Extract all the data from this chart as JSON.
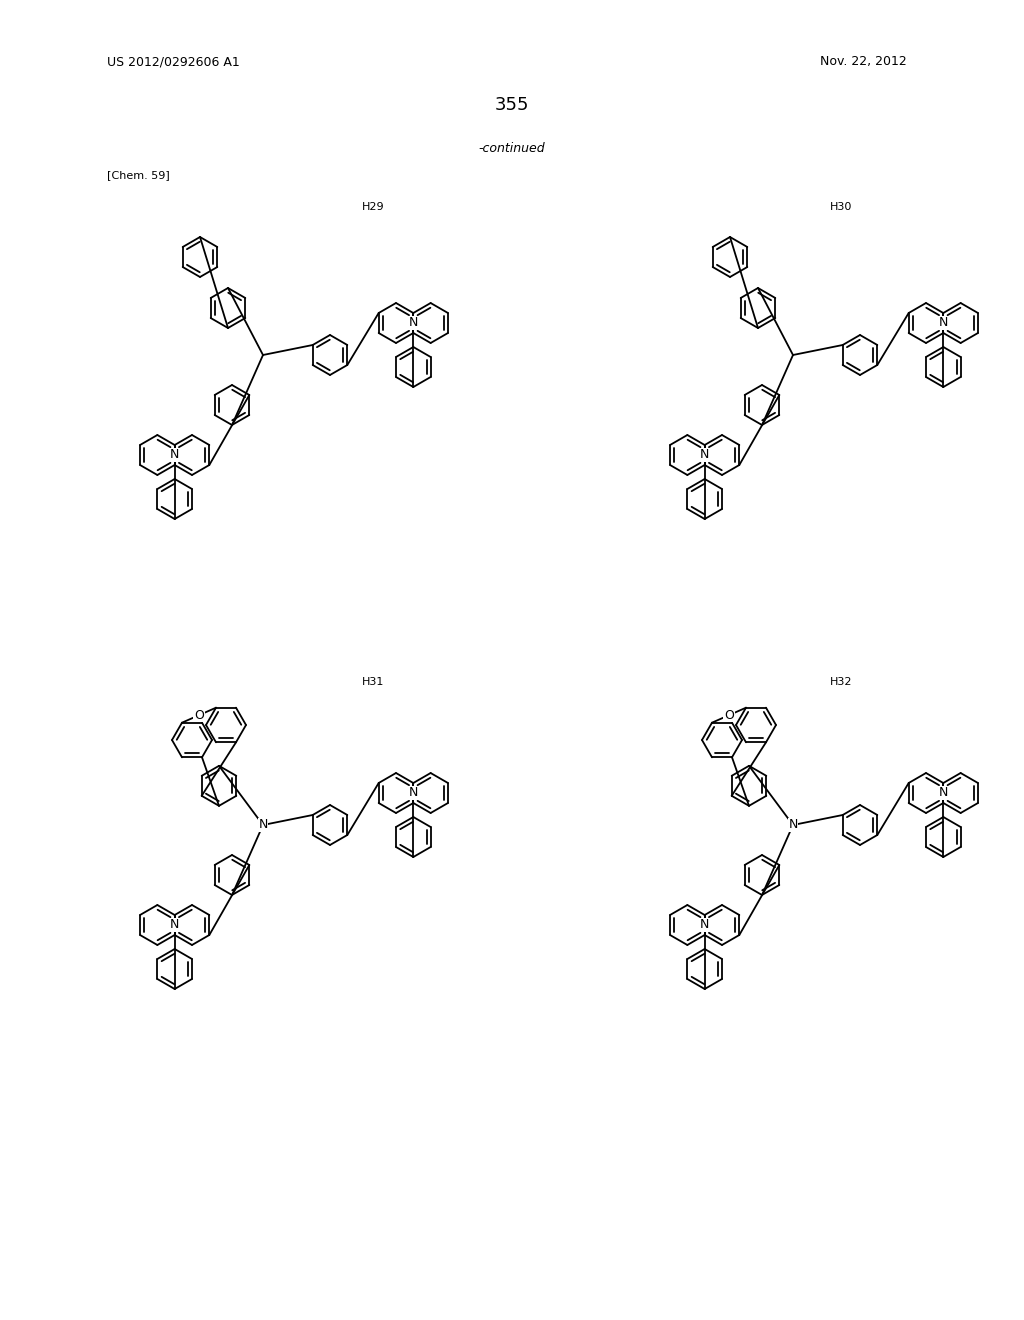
{
  "page_number": "355",
  "patent_number": "US 2012/0292606 A1",
  "patent_date": "Nov. 22, 2012",
  "continued_label": "-continued",
  "chem_label": "[Chem. 59]",
  "compound_labels": [
    "H29",
    "H30",
    "H31",
    "H32"
  ],
  "background_color": "#ffffff",
  "text_color": "#000000",
  "line_color": "#000000",
  "line_width": 1.3,
  "font_size_header": 9,
  "font_size_label": 8,
  "font_size_page": 13,
  "r": 20
}
